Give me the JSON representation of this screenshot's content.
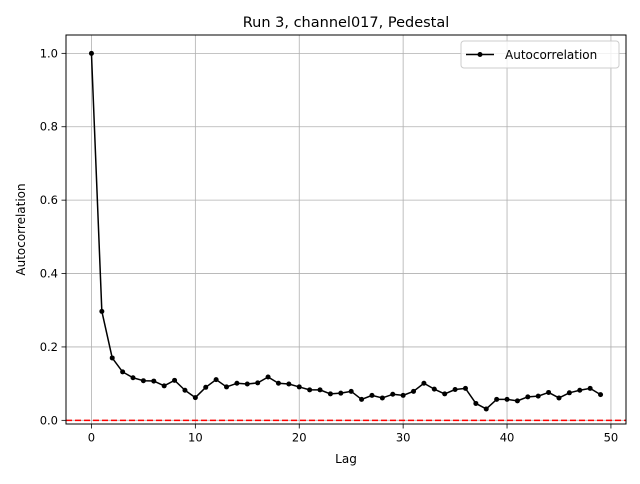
{
  "chart_data": {
    "type": "line",
    "title": "Run 3, channel017, Pedestal",
    "xlabel": "Lag",
    "ylabel": "Autocorrelation",
    "xlim": [
      -2.45,
      51.45
    ],
    "ylim": [
      -0.01,
      1.05
    ],
    "xticks": [
      0,
      10,
      20,
      30,
      40,
      50
    ],
    "yticks": [
      0.0,
      0.2,
      0.4,
      0.6,
      0.8,
      1.0
    ],
    "xtick_labels": [
      "0",
      "10",
      "20",
      "30",
      "40",
      "50"
    ],
    "ytick_labels": [
      "0.0",
      "0.2",
      "0.4",
      "0.6",
      "0.8",
      "1.0"
    ],
    "grid": true,
    "legend_position": "top-right",
    "series": [
      {
        "name": "Autocorrelation",
        "color": "#000000",
        "marker": "circle",
        "x": [
          0,
          1,
          2,
          3,
          4,
          5,
          6,
          7,
          8,
          9,
          10,
          11,
          12,
          13,
          14,
          15,
          16,
          17,
          18,
          19,
          20,
          21,
          22,
          23,
          24,
          25,
          26,
          27,
          28,
          29,
          30,
          31,
          32,
          33,
          34,
          35,
          36,
          37,
          38,
          39,
          40,
          41,
          42,
          43,
          44,
          45,
          46,
          47,
          48,
          49
        ],
        "y": [
          1.0,
          0.297,
          0.17,
          0.132,
          0.116,
          0.108,
          0.107,
          0.094,
          0.109,
          0.082,
          0.062,
          0.09,
          0.111,
          0.091,
          0.101,
          0.099,
          0.102,
          0.118,
          0.101,
          0.099,
          0.091,
          0.083,
          0.083,
          0.072,
          0.074,
          0.079,
          0.057,
          0.068,
          0.061,
          0.071,
          0.068,
          0.079,
          0.101,
          0.085,
          0.072,
          0.084,
          0.087,
          0.046,
          0.031,
          0.057,
          0.057,
          0.053,
          0.064,
          0.066,
          0.076,
          0.061,
          0.075,
          0.082,
          0.087,
          0.07
        ]
      }
    ],
    "reference_line": {
      "y": 0.0,
      "color": "#ff0000",
      "style": "dashed"
    }
  }
}
